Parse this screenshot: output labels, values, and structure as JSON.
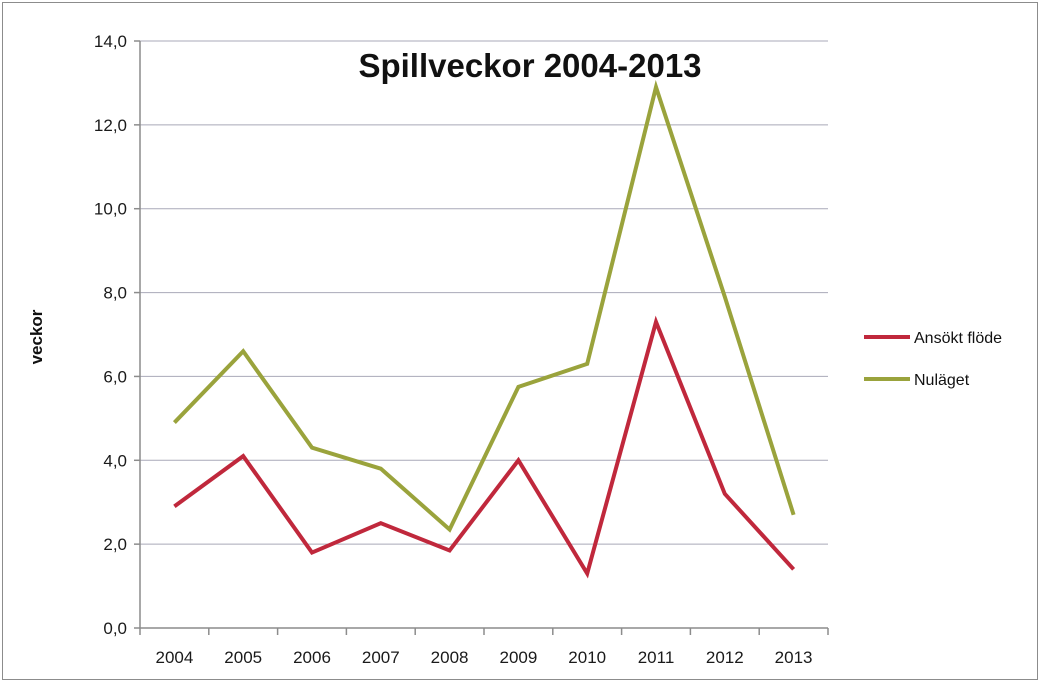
{
  "chart_data": {
    "type": "line",
    "title": "Spillveckor 2004-2013",
    "xlabel": "",
    "ylabel": "veckor",
    "categories": [
      "2004",
      "2005",
      "2006",
      "2007",
      "2008",
      "2009",
      "2010",
      "2011",
      "2012",
      "2013"
    ],
    "ylim": [
      0,
      14
    ],
    "yticks": [
      "0,0",
      "2,0",
      "4,0",
      "6,0",
      "8,0",
      "10,0",
      "12,0",
      "14,0"
    ],
    "grid": true,
    "legend_position": "right",
    "series": [
      {
        "name": "Ansökt flöde",
        "color": "#c0283c",
        "values": [
          2.9,
          4.1,
          1.8,
          2.5,
          1.85,
          4.0,
          1.3,
          7.3,
          3.2,
          1.4
        ]
      },
      {
        "name": "Nuläget",
        "color": "#9aa33c",
        "values": [
          4.9,
          6.6,
          4.3,
          3.8,
          2.35,
          5.75,
          6.3,
          12.9,
          7.9,
          2.7
        ]
      }
    ]
  }
}
